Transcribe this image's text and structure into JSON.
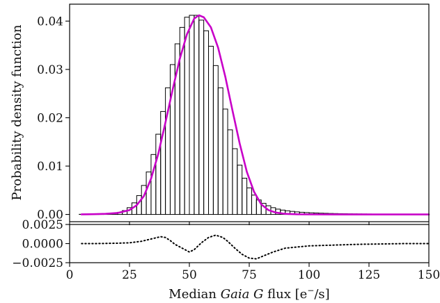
{
  "chart_data": [
    {
      "type": "line",
      "panel": "main",
      "ylabel": "Probability density function",
      "xlim": [
        0,
        150
      ],
      "ylim": [
        -0.0015,
        0.0435
      ],
      "yticks": [
        0.0,
        0.01,
        0.02,
        0.03,
        0.04
      ],
      "ytick_labels": [
        "0.00",
        "0.01",
        "0.02",
        "0.03",
        "0.04"
      ],
      "grid": false,
      "legend": "none",
      "colors": {
        "histogram": "#000000",
        "model": "#c800c8"
      },
      "series": [
        {
          "style": "step-histogram",
          "bin_width": 2,
          "x": [
            5,
            7,
            9,
            11,
            13,
            15,
            17,
            19,
            21,
            23,
            25,
            27,
            29,
            31,
            33,
            35,
            37,
            39,
            41,
            43,
            45,
            47,
            49,
            51,
            53,
            55,
            57,
            59,
            61,
            63,
            65,
            67,
            69,
            71,
            73,
            75,
            77,
            79,
            81,
            83,
            85,
            87,
            89,
            91,
            93,
            95,
            97,
            99,
            101,
            103,
            105,
            107,
            109,
            111,
            113,
            115,
            117,
            119,
            121,
            123,
            125,
            127,
            129,
            131,
            133,
            135,
            137,
            139,
            141,
            143,
            145,
            147,
            149
          ],
          "y": [
            3e-05,
            4e-05,
            5e-05,
            6e-05,
            8e-05,
            0.00011,
            0.00016,
            0.00026,
            0.00045,
            0.0008,
            0.0014,
            0.0024,
            0.0039,
            0.006,
            0.0088,
            0.0124,
            0.0166,
            0.0213,
            0.0262,
            0.031,
            0.0353,
            0.0387,
            0.0408,
            0.0412,
            0.0412,
            0.0402,
            0.038,
            0.0348,
            0.0308,
            0.0262,
            0.0218,
            0.0175,
            0.0136,
            0.0102,
            0.0075,
            0.0055,
            0.004,
            0.003,
            0.0023,
            0.0018,
            0.0014,
            0.0011,
            0.0009,
            0.00075,
            0.00063,
            0.00053,
            0.00045,
            0.00039,
            0.00034,
            0.0003,
            0.00026,
            0.00023,
            0.0002,
            0.00018,
            0.00016,
            0.00015,
            0.00013,
            0.00012,
            0.00011,
            0.0001,
            9e-05,
            8e-05,
            8e-05,
            7e-05,
            7e-05,
            6e-05,
            6e-05,
            5e-05,
            5e-05,
            5e-05,
            4e-05,
            4e-05,
            4e-05
          ]
        },
        {
          "style": "smooth-line",
          "x": [
            5,
            10,
            15,
            20,
            25,
            28,
            31,
            34,
            37,
            40,
            43,
            46,
            49,
            52,
            54,
            56,
            59,
            62,
            65,
            68,
            71,
            74,
            77,
            80,
            83,
            86,
            90,
            95,
            100,
            110,
            120,
            130,
            140,
            150
          ],
          "y": [
            2e-05,
            5e-05,
            0.00012,
            0.0003,
            0.0009,
            0.0019,
            0.0038,
            0.0074,
            0.0125,
            0.019,
            0.0258,
            0.0322,
            0.0373,
            0.0405,
            0.0412,
            0.0408,
            0.0387,
            0.0345,
            0.0285,
            0.0215,
            0.0147,
            0.0088,
            0.0047,
            0.0021,
            0.0009,
            0.0004,
            0.00012,
            3e-05,
            1e-05,
            0,
            0,
            0,
            0,
            0
          ]
        }
      ]
    },
    {
      "type": "line",
      "panel": "residual",
      "xlabel_parts": [
        "Median ",
        "Gaia G",
        " flux [e",
        "−",
        "/s]"
      ],
      "xlim": [
        0,
        150
      ],
      "xticks": [
        0,
        25,
        50,
        75,
        100,
        125,
        150
      ],
      "xtick_labels": [
        "0",
        "25",
        "50",
        "75",
        "100",
        "125",
        "150"
      ],
      "ylim": [
        -0.0025,
        0.0025
      ],
      "yticks": [
        0.0025,
        0.0,
        -0.0025
      ],
      "ytick_labels": [
        "0.0025",
        "0.0000",
        "−0.0025"
      ],
      "grid": false,
      "legend": "none",
      "series": [
        {
          "style": "dotted",
          "x": [
            5,
            10,
            15,
            20,
            25,
            30,
            34,
            38,
            40,
            42,
            44,
            47,
            50,
            52,
            55,
            58,
            61,
            64,
            66,
            69,
            72,
            75,
            78,
            81,
            85,
            90,
            100,
            110,
            120,
            130,
            140,
            150
          ],
          "y": [
            0,
            0,
            2e-05,
            5e-05,
            0.0001,
            0.0003,
            0.0006,
            0.0009,
            0.0008,
            0.0004,
            -0.0001,
            -0.0006,
            -0.0011,
            -0.0008,
            0.0001,
            0.0008,
            0.0011,
            0.0008,
            0.0003,
            -0.0006,
            -0.0014,
            -0.0019,
            -0.002,
            -0.0016,
            -0.0011,
            -0.0006,
            -0.0003,
            -0.0002,
            -0.0001,
            -5e-05,
            0,
            0
          ]
        }
      ]
    }
  ]
}
